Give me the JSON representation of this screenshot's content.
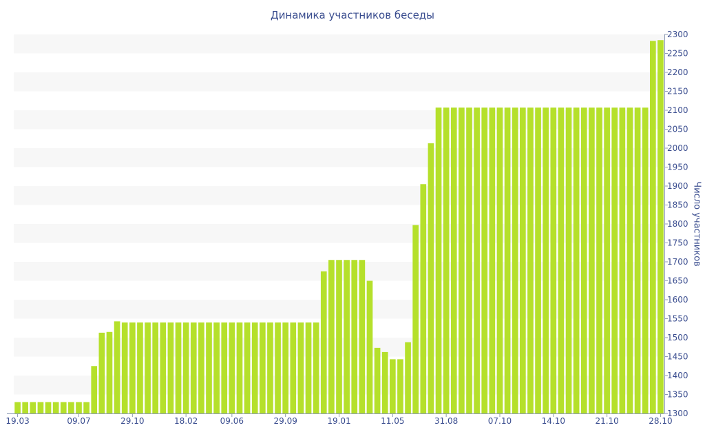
{
  "chart_data": {
    "type": "bar",
    "title": "Динамика участников беседы",
    "xlabel": "",
    "ylabel": "Число участников",
    "ylim": [
      1300,
      2300
    ],
    "yticks": [
      1300,
      1350,
      1400,
      1450,
      1500,
      1550,
      1600,
      1650,
      1700,
      1750,
      1800,
      1850,
      1900,
      1950,
      2000,
      2050,
      2100,
      2150,
      2200,
      2250,
      2300
    ],
    "y_axis_position": "right",
    "grid": "alternating horizontal bands",
    "bar_color": "#b5e02b",
    "band_color": "#f7f7f7",
    "text_color": "#3a4d8f",
    "x_tick_labels": [
      {
        "label": "19.03",
        "bar": 0
      },
      {
        "label": "09.07",
        "bar": 8
      },
      {
        "label": "29.10",
        "bar": 15
      },
      {
        "label": "18.02",
        "bar": 22
      },
      {
        "label": "09.06",
        "bar": 28
      },
      {
        "label": "29.09",
        "bar": 35
      },
      {
        "label": "19.01",
        "bar": 42
      },
      {
        "label": "11.05",
        "bar": 49
      },
      {
        "label": "31.08",
        "bar": 56
      },
      {
        "label": "07.10",
        "bar": 63
      },
      {
        "label": "14.10",
        "bar": 70
      },
      {
        "label": "21.10",
        "bar": 77
      },
      {
        "label": "28.10",
        "bar": 84
      }
    ],
    "values": [
      1330,
      1330,
      1330,
      1330,
      1330,
      1330,
      1330,
      1330,
      1330,
      1330,
      1425,
      1513,
      1515,
      1543,
      1540,
      1540,
      1540,
      1540,
      1540,
      1540,
      1540,
      1540,
      1540,
      1540,
      1540,
      1540,
      1540,
      1540,
      1540,
      1540,
      1540,
      1540,
      1540,
      1540,
      1540,
      1540,
      1540,
      1540,
      1540,
      1540,
      1675,
      1705,
      1705,
      1705,
      1705,
      1705,
      1650,
      1473,
      1462,
      1443,
      1443,
      1488,
      1797,
      1905,
      2013,
      2107,
      2107,
      2107,
      2107,
      2107,
      2107,
      2107,
      2107,
      2107,
      2107,
      2107,
      2107,
      2107,
      2107,
      2107,
      2107,
      2107,
      2107,
      2107,
      2107,
      2107,
      2107,
      2107,
      2107,
      2107,
      2107,
      2107,
      2107,
      2283,
      2285
    ]
  }
}
